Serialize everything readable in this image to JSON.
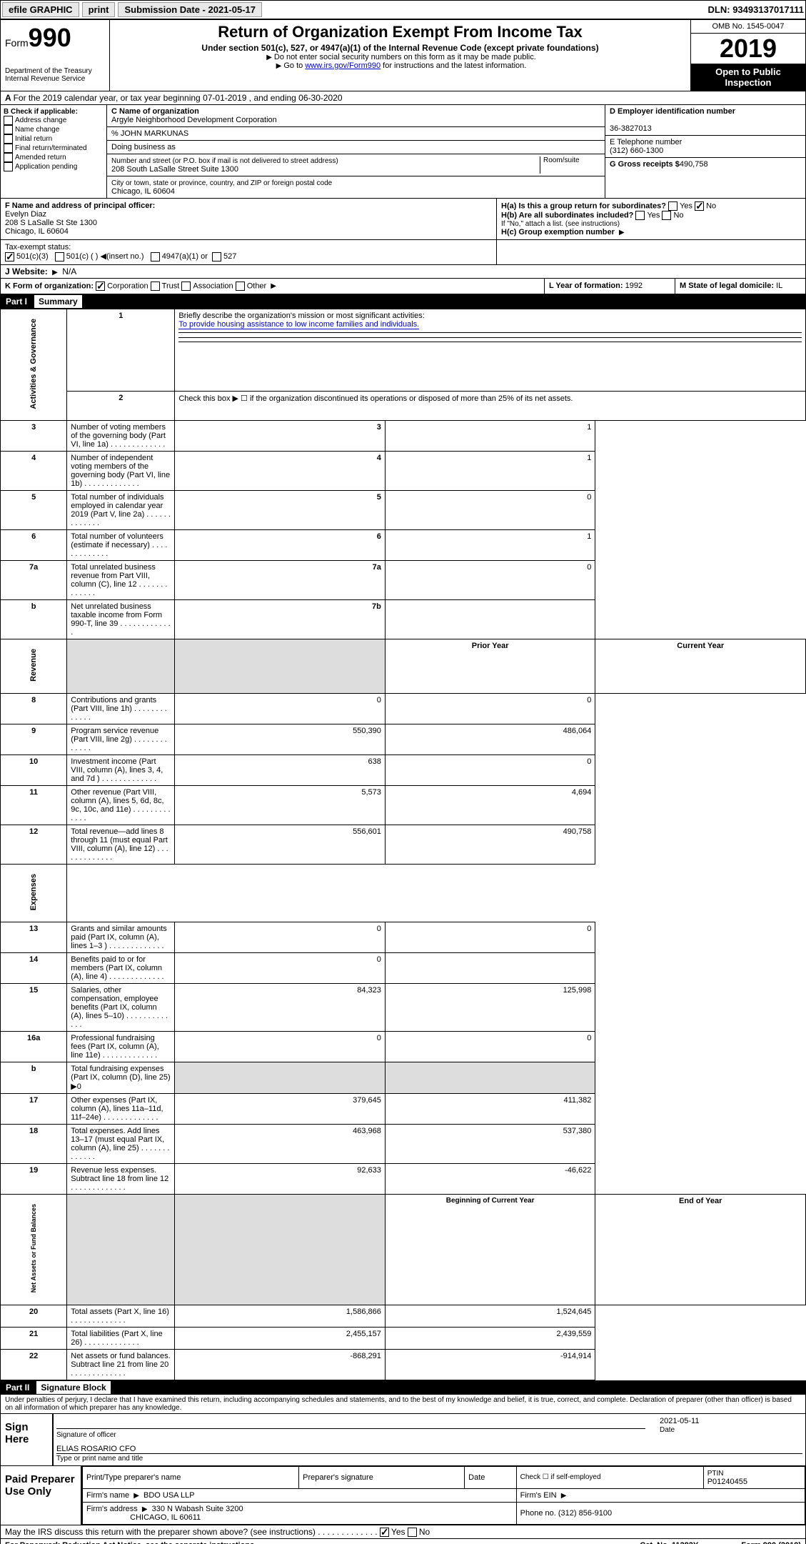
{
  "topbar": {
    "efile": "efile GRAPHIC",
    "print": "print",
    "sub_label": "Submission Date - 2021-05-17",
    "dln": "DLN: 93493137017111"
  },
  "header": {
    "form_prefix": "Form",
    "form_num": "990",
    "title": "Return of Organization Exempt From Income Tax",
    "sub1": "Under section 501(c), 527, or 4947(a)(1) of the Internal Revenue Code (except private foundations)",
    "sub2": "Do not enter social security numbers on this form as it may be made public.",
    "sub3_a": "Go to ",
    "sub3_link": "www.irs.gov/Form990",
    "sub3_b": " for instructions and the latest information.",
    "omb": "OMB No. 1545-0047",
    "year": "2019",
    "open": "Open to Public Inspection",
    "dept": "Department of the Treasury Internal Revenue Service"
  },
  "row_a": "For the 2019 calendar year, or tax year beginning 07-01-2019    , and ending 06-30-2020",
  "box_b": {
    "title": "B Check if applicable:",
    "items": [
      "Address change",
      "Name change",
      "Initial return",
      "Final return/terminated",
      "Amended return",
      "Application pending"
    ]
  },
  "box_c": {
    "name_label": "C Name of organization",
    "name": "Argyle Neighborhood Development Corporation",
    "co": "% JOHN MARKUNAS",
    "dba_label": "Doing business as",
    "dba": "",
    "addr_label": "Number and street (or P.O. box if mail is not delivered to street address)",
    "room_label": "Room/suite",
    "addr": "208 South LaSalle Street Suite 1300",
    "city_label": "City or town, state or province, country, and ZIP or foreign postal code",
    "city": "Chicago, IL  60604"
  },
  "box_d": {
    "label": "D Employer identification number",
    "val": "36-3827013"
  },
  "box_e": {
    "label": "E Telephone number",
    "val": "(312) 660-1300"
  },
  "box_g": {
    "label": "G Gross receipts $",
    "val": "490,758"
  },
  "box_f": {
    "label": "F  Name and address of principal officer:",
    "name": "Evelyn Diaz",
    "addr1": "208 S LaSalle St Ste 1300",
    "addr2": "Chicago, IL  60604"
  },
  "box_h": {
    "a": "H(a)  Is this a group return for subordinates?",
    "a_yes": "Yes",
    "a_no": "No",
    "b": "H(b)  Are all subordinates included?",
    "b_yes": "Yes",
    "b_no": "No",
    "b_note": "If \"No,\" attach a list. (see instructions)",
    "c": "H(c)  Group exemption number"
  },
  "tax_status": {
    "label": "Tax-exempt status:",
    "opt1": "501(c)(3)",
    "opt2": "501(c) (  )",
    "opt2b": "(insert no.)",
    "opt3": "4947(a)(1) or",
    "opt4": "527"
  },
  "website": {
    "label": "Website:",
    "val": "N/A"
  },
  "row_k": {
    "label": "K Form of organization:",
    "opts": [
      "Corporation",
      "Trust",
      "Association",
      "Other"
    ],
    "checked": 0
  },
  "row_l": {
    "label": "L Year of formation:",
    "val": "1992"
  },
  "row_m": {
    "label": "M State of legal domicile:",
    "val": "IL"
  },
  "part1": "Part I",
  "part1_title": "Summary",
  "summary": {
    "q1": "Briefly describe the organization's mission or most significant activities:",
    "q1_ans": "To provide housing assistance to low income families and individuals.",
    "q2": "Check this box ▶ ☐  if the organization discontinued its operations or disposed of more than 25% of its net assets.",
    "rows": [
      {
        "n": "3",
        "t": "Number of voting members of the governing body (Part VI, line 1a)",
        "rn": "3",
        "v": "1"
      },
      {
        "n": "4",
        "t": "Number of independent voting members of the governing body (Part VI, line 1b)",
        "rn": "4",
        "v": "1"
      },
      {
        "n": "5",
        "t": "Total number of individuals employed in calendar year 2019 (Part V, line 2a)",
        "rn": "5",
        "v": "0"
      },
      {
        "n": "6",
        "t": "Total number of volunteers (estimate if necessary)",
        "rn": "6",
        "v": "1"
      },
      {
        "n": "7a",
        "t": "Total unrelated business revenue from Part VIII, column (C), line 12",
        "rn": "7a",
        "v": "0"
      },
      {
        "n": "b",
        "t": "Net unrelated business taxable income from Form 990-T, line 39",
        "rn": "7b",
        "v": ""
      }
    ],
    "col_prior": "Prior Year",
    "col_current": "Current Year",
    "rev": [
      {
        "n": "8",
        "t": "Contributions and grants (Part VIII, line 1h)",
        "p": "0",
        "c": "0"
      },
      {
        "n": "9",
        "t": "Program service revenue (Part VIII, line 2g)",
        "p": "550,390",
        "c": "486,064"
      },
      {
        "n": "10",
        "t": "Investment income (Part VIII, column (A), lines 3, 4, and 7d )",
        "p": "638",
        "c": "0"
      },
      {
        "n": "11",
        "t": "Other revenue (Part VIII, column (A), lines 5, 6d, 8c, 9c, 10c, and 11e)",
        "p": "5,573",
        "c": "4,694"
      },
      {
        "n": "12",
        "t": "Total revenue—add lines 8 through 11 (must equal Part VIII, column (A), line 12)",
        "p": "556,601",
        "c": "490,758"
      }
    ],
    "exp": [
      {
        "n": "13",
        "t": "Grants and similar amounts paid (Part IX, column (A), lines 1–3 )",
        "p": "0",
        "c": "0"
      },
      {
        "n": "14",
        "t": "Benefits paid to or for members (Part IX, column (A), line 4)",
        "p": "0",
        "c": ""
      },
      {
        "n": "15",
        "t": "Salaries, other compensation, employee benefits (Part IX, column (A), lines 5–10)",
        "p": "84,323",
        "c": "125,998"
      },
      {
        "n": "16a",
        "t": "Professional fundraising fees (Part IX, column (A), line 11e)",
        "p": "0",
        "c": "0"
      },
      {
        "n": "b",
        "t": "Total fundraising expenses (Part IX, column (D), line 25) ▶0",
        "p": "",
        "c": ""
      },
      {
        "n": "17",
        "t": "Other expenses (Part IX, column (A), lines 11a–11d, 11f–24e)",
        "p": "379,645",
        "c": "411,382"
      },
      {
        "n": "18",
        "t": "Total expenses. Add lines 13–17 (must equal Part IX, column (A), line 25)",
        "p": "463,968",
        "c": "537,380"
      },
      {
        "n": "19",
        "t": "Revenue less expenses. Subtract line 18 from line 12",
        "p": "92,633",
        "c": "-46,622"
      }
    ],
    "col_begin": "Beginning of Current Year",
    "col_end": "End of Year",
    "net": [
      {
        "n": "20",
        "t": "Total assets (Part X, line 16)",
        "p": "1,586,866",
        "c": "1,524,645"
      },
      {
        "n": "21",
        "t": "Total liabilities (Part X, line 26)",
        "p": "2,455,157",
        "c": "2,439,559"
      },
      {
        "n": "22",
        "t": "Net assets or fund balances. Subtract line 21 from line 20",
        "p": "-868,291",
        "c": "-914,914"
      }
    ],
    "section_labels": {
      "ag": "Activities & Governance",
      "rev": "Revenue",
      "exp": "Expenses",
      "net": "Net Assets or Fund Balances"
    }
  },
  "part2": "Part II",
  "part2_title": "Signature Block",
  "perjury": "Under penalties of perjury, I declare that I have examined this return, including accompanying schedules and statements, and to the best of my knowledge and belief, it is true, correct, and complete. Declaration of preparer (other than officer) is based on all information of which preparer has any knowledge.",
  "sign": {
    "here": "Sign Here",
    "sig_label": "Signature of officer",
    "date": "2021-05-11",
    "date_label": "Date",
    "name": "ELIAS ROSARIO CFO",
    "name_label": "Type or print name and title"
  },
  "paid": {
    "label": "Paid Preparer Use Only",
    "h1": "Print/Type preparer's name",
    "h2": "Preparer's signature",
    "h3": "Date",
    "h4": "Check ☐ if self-employed",
    "h5": "PTIN",
    "ptin": "P01240455",
    "firm_label": "Firm's name",
    "firm": "BDO USA LLP",
    "ein_label": "Firm's EIN",
    "addr_label": "Firm's address",
    "addr": "330 N Wabash Suite 3200",
    "addr2": "CHICAGO, IL  60611",
    "phone_label": "Phone no.",
    "phone": "(312) 856-9100"
  },
  "discuss": {
    "q": "May the IRS discuss this return with the preparer shown above? (see instructions)",
    "yes": "Yes",
    "no": "No"
  },
  "footer": {
    "left": "For Paperwork Reduction Act Notice, see the separate instructions.",
    "mid": "Cat. No. 11282Y",
    "right": "Form 990 (2019)"
  }
}
